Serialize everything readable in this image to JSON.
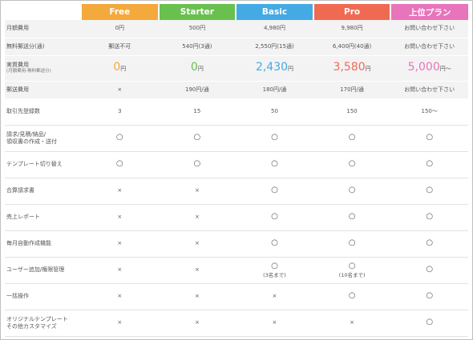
{
  "plans": [
    {
      "name": "Free",
      "color": "#f3a93b"
    },
    {
      "name": "Starter",
      "color": "#69c04e"
    },
    {
      "name": "Basic",
      "color": "#44aae3"
    },
    {
      "name": "Pro",
      "color": "#f06a52"
    },
    {
      "name": "上位プラン",
      "color": "#e874bb"
    }
  ],
  "rows": {
    "monthly": {
      "label": "月額費用",
      "values": [
        "0円",
        "500円",
        "4,980円",
        "9,980円",
        "お問い合わせ下さい"
      ]
    },
    "free_send": {
      "label": "無料郵送分(通)",
      "values": [
        "郵送不可",
        "540円(3通)",
        "2,550円(15通)",
        "6,400円(40通)",
        "お問い合わせ下さい"
      ]
    },
    "actual": {
      "label": "実質費用",
      "sublabel": "(月額費用-無料郵送分)",
      "values": [
        {
          "num": "0",
          "unit": "円"
        },
        {
          "num": "0",
          "unit": "円"
        },
        {
          "num": "2,430",
          "unit": "円"
        },
        {
          "num": "3,580",
          "unit": "円"
        },
        {
          "num": "5,000",
          "unit": "円〜"
        }
      ]
    },
    "postage": {
      "label": "郵送費用",
      "values": [
        "×",
        "190円/通",
        "180円/通",
        "170円/通",
        "お問い合わせ下さい"
      ]
    },
    "clients": {
      "label": "取引先登録数",
      "values": [
        "3",
        "15",
        "50",
        "150",
        "150〜"
      ]
    },
    "docs": {
      "label": "請求/見積/納品/",
      "label2": "領収書の作成・送付",
      "values": [
        "○",
        "○",
        "○",
        "○",
        "○"
      ]
    },
    "template": {
      "label": "テンプレート切り替え",
      "values": [
        "○",
        "○",
        "○",
        "○",
        "○"
      ]
    },
    "combined": {
      "label": "合算請求書",
      "values": [
        "×",
        "×",
        "○",
        "○",
        "○"
      ]
    },
    "report": {
      "label": "売上レポート",
      "values": [
        "×",
        "×",
        "○",
        "○",
        "○"
      ]
    },
    "auto": {
      "label": "毎月自動作成機能",
      "values": [
        "×",
        "×",
        "○",
        "○",
        "○"
      ]
    },
    "users": {
      "label": "ユーザー追加/権限管理",
      "values": [
        "×",
        "×",
        "○",
        "○",
        "○"
      ],
      "notes": [
        "",
        "",
        "(3名まで)",
        "(10名まで)",
        ""
      ]
    },
    "bulk": {
      "label": "一括操作",
      "values": [
        "×",
        "×",
        "×",
        "○",
        "○"
      ]
    },
    "custom": {
      "label": "オリジナルテンプレート",
      "label2": "その他カスタマイズ",
      "values": [
        "×",
        "×",
        "×",
        "×",
        "○"
      ]
    }
  }
}
